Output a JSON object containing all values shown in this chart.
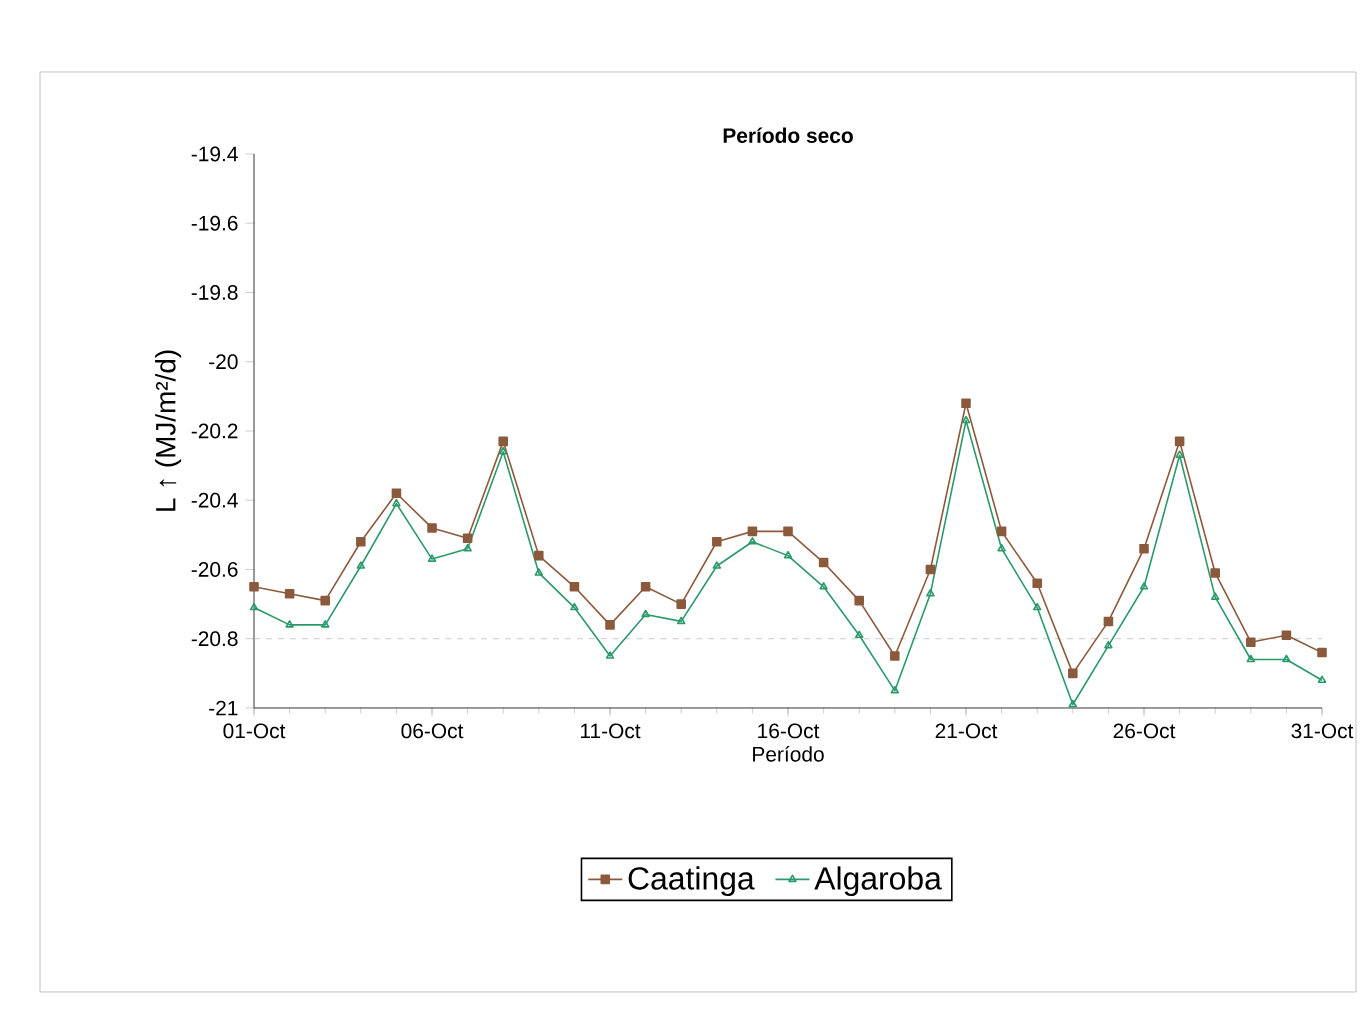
{
  "chart_data": {
    "type": "line",
    "title": "Período seco",
    "xlabel": "Período",
    "ylabel": "L ↑ (MJ/m²/d)",
    "categories": [
      "01-Oct",
      null,
      null,
      null,
      null,
      "06-Oct",
      null,
      null,
      null,
      null,
      "11-Oct",
      null,
      null,
      null,
      null,
      "16-Oct",
      null,
      null,
      null,
      null,
      "21-Oct",
      null,
      null,
      null,
      null,
      "26-Oct",
      null,
      null,
      null,
      null,
      "31-Oct"
    ],
    "series": [
      {
        "name": "Caatinga",
        "color": "#8b5a3c",
        "marker": "square",
        "values": [
          -20.65,
          -20.67,
          -20.69,
          -20.52,
          -20.38,
          -20.48,
          -20.51,
          -20.23,
          -20.56,
          -20.65,
          -20.76,
          -20.65,
          -20.7,
          -20.52,
          -20.49,
          -20.49,
          -20.58,
          -20.69,
          -20.85,
          -20.6,
          -20.12,
          -20.49,
          -20.64,
          -20.9,
          -20.75,
          -20.54,
          -20.23,
          -20.61,
          -20.81,
          -20.79,
          -20.84
        ]
      },
      {
        "name": "Algaroba",
        "color": "#2a9a6a",
        "marker": "triangle",
        "values": [
          -20.71,
          -20.76,
          -20.76,
          -20.59,
          -20.41,
          -20.57,
          -20.54,
          -20.26,
          -20.61,
          -20.71,
          -20.85,
          -20.73,
          -20.75,
          -20.59,
          -20.52,
          -20.56,
          -20.65,
          -20.79,
          -20.95,
          -20.67,
          -20.17,
          -20.54,
          -20.71,
          -20.99,
          -20.82,
          -20.65,
          -20.27,
          -20.68,
          -20.86,
          -20.86,
          -20.92
        ]
      }
    ],
    "ylim": [
      -21,
      -19.4
    ],
    "yticks": [
      -21,
      -20.8,
      -20.6,
      -20.4,
      -20.2,
      -20,
      -19.8,
      -19.6,
      -19.4
    ],
    "ref_lines": [
      {
        "axis": "y",
        "value": -20.8,
        "color": "#bbbbbb",
        "line_style": "dashed"
      }
    ],
    "legend": "bottom",
    "grid": false,
    "line_style": "solid"
  }
}
